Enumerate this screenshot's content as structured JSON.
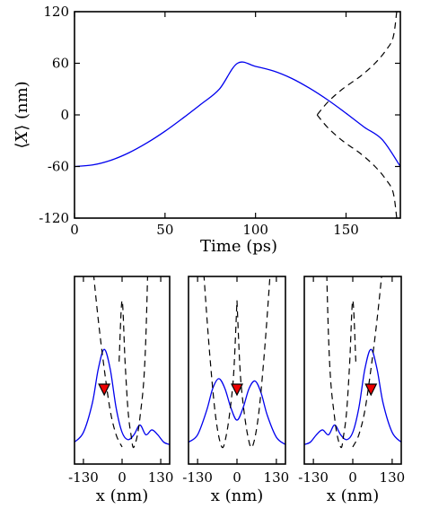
{
  "chart_data": [
    {
      "type": "line",
      "xlabel": "Time (ps)",
      "ylabel_main": "X",
      "ylabel_unit": "(nm)",
      "xlim": [
        0,
        180
      ],
      "ylim": [
        -120,
        120
      ],
      "xticks": [
        0,
        50,
        100,
        150
      ],
      "yticks": [
        120,
        60,
        0,
        -60,
        -120
      ],
      "xtick_labels": [
        "0",
        "50",
        "100",
        "150"
      ],
      "ytick_labels": [
        "120",
        "60",
        "0",
        "-60",
        "-120"
      ],
      "grid": false,
      "series": [
        {
          "style": "solid",
          "color": "#0000ee",
          "x": [
            0,
            10,
            20,
            30,
            40,
            50,
            60,
            70,
            80,
            90,
            100,
            110,
            120,
            130,
            140,
            150,
            160,
            170,
            180
          ],
          "y": [
            -60,
            -58.2,
            -52.8,
            -44.1,
            -32.6,
            -19.0,
            -3.6,
            12.6,
            29.9,
            60,
            56.4,
            51.0,
            42.4,
            30.8,
            17.2,
            1.9,
            -14.2,
            -28.8,
            -60
          ]
        },
        {
          "style": "dashed",
          "color": "#000000",
          "x": [
            178,
            176,
            172,
            166,
            158,
            148,
            140,
            134
          ],
          "y": [
            120,
            90,
            75,
            60,
            45,
            30,
            15,
            0
          ]
        },
        {
          "style": "dashed",
          "color": "#000000",
          "x": [
            134,
            140,
            148,
            158,
            166,
            172,
            176,
            178
          ],
          "y": [
            0,
            -15,
            -30,
            -45,
            -60,
            -75,
            -90,
            -120
          ]
        }
      ]
    },
    {
      "type": "line",
      "xlabel": "x (nm)",
      "xlim": [
        -160,
        160
      ],
      "xticks": [
        -130,
        0,
        130
      ],
      "xtick_labels": [
        "-130",
        "0",
        "130"
      ],
      "marker_x": -60,
      "series": [
        {
          "style": "solid",
          "color": "#0000ee",
          "x": [
            -160,
            -130,
            -100,
            -80,
            -60,
            -40,
            -20,
            0,
            20,
            40,
            60,
            80,
            100,
            120,
            140,
            160
          ],
          "y": [
            0.02,
            0.06,
            0.18,
            0.32,
            0.4,
            0.32,
            0.16,
            0.06,
            0.03,
            0.05,
            0.09,
            0.05,
            0.07,
            0.05,
            0.02,
            0.01
          ]
        },
        {
          "style": "dashed",
          "color": "#000000",
          "x": [
            -155,
            -140,
            -120,
            -100,
            -80,
            -60,
            -40,
            -20,
            0
          ],
          "y": [
            1.5,
            1.3,
            1.02,
            0.76,
            0.52,
            0.32,
            0.15,
            0.05,
            0.0
          ]
        },
        {
          "style": "dashed",
          "color": "#000000",
          "x": [
            -10,
            0,
            10,
            20,
            30,
            40,
            60,
            80,
            100
          ],
          "y": [
            0.35,
            0.6,
            0.35,
            0.15,
            0.05,
            0.0,
            0.12,
            0.45,
            1.5
          ]
        }
      ]
    },
    {
      "type": "line",
      "xlabel": "x (nm)",
      "xlim": [
        -160,
        160
      ],
      "xticks": [
        -130,
        0,
        130
      ],
      "xtick_labels": [
        "-130",
        "0",
        "130"
      ],
      "marker_x": 0,
      "series": [
        {
          "style": "solid",
          "color": "#0000ee",
          "x": [
            -160,
            -130,
            -100,
            -80,
            -60,
            -40,
            -20,
            0,
            20,
            40,
            60,
            80,
            100,
            130,
            160
          ],
          "y": [
            0.02,
            0.05,
            0.15,
            0.24,
            0.28,
            0.24,
            0.16,
            0.11,
            0.16,
            0.24,
            0.27,
            0.22,
            0.13,
            0.04,
            0.01
          ]
        },
        {
          "style": "dashed",
          "color": "#000000",
          "x": [
            -150,
            -130,
            -110,
            -90,
            -70,
            -50,
            -35,
            -20,
            -10,
            0
          ],
          "y": [
            1.5,
            1.1,
            0.72,
            0.38,
            0.12,
            0.0,
            0.05,
            0.18,
            0.32,
            0.6
          ]
        },
        {
          "style": "dashed",
          "color": "#000000",
          "x": [
            0,
            10,
            20,
            35,
            50,
            70,
            90,
            110,
            130,
            150
          ],
          "y": [
            0.6,
            0.32,
            0.18,
            0.05,
            0.0,
            0.12,
            0.38,
            0.72,
            1.1,
            1.5
          ]
        }
      ]
    },
    {
      "type": "line",
      "xlabel": "x (nm)",
      "xlim": [
        -160,
        160
      ],
      "xticks": [
        -130,
        0,
        130
      ],
      "xtick_labels": [
        "-130",
        "0",
        "130"
      ],
      "marker_x": 60,
      "series": [
        {
          "style": "solid",
          "color": "#0000ee",
          "x": [
            -160,
            -140,
            -120,
            -100,
            -80,
            -60,
            -40,
            -20,
            0,
            20,
            40,
            60,
            80,
            100,
            130,
            160
          ],
          "y": [
            0.01,
            0.02,
            0.05,
            0.07,
            0.05,
            0.09,
            0.05,
            0.03,
            0.06,
            0.16,
            0.32,
            0.4,
            0.32,
            0.18,
            0.06,
            0.02
          ]
        },
        {
          "style": "dashed",
          "color": "#000000",
          "x": [
            -100,
            -80,
            -60,
            -40,
            -30,
            -20,
            -10,
            0,
            10
          ],
          "y": [
            1.5,
            0.45,
            0.12,
            0.0,
            0.05,
            0.15,
            0.35,
            0.6,
            0.35
          ]
        },
        {
          "style": "dashed",
          "color": "#000000",
          "x": [
            0,
            20,
            40,
            60,
            80,
            100,
            120,
            140,
            155
          ],
          "y": [
            0.0,
            0.05,
            0.15,
            0.32,
            0.52,
            0.76,
            1.02,
            1.3,
            1.5
          ]
        }
      ]
    }
  ]
}
